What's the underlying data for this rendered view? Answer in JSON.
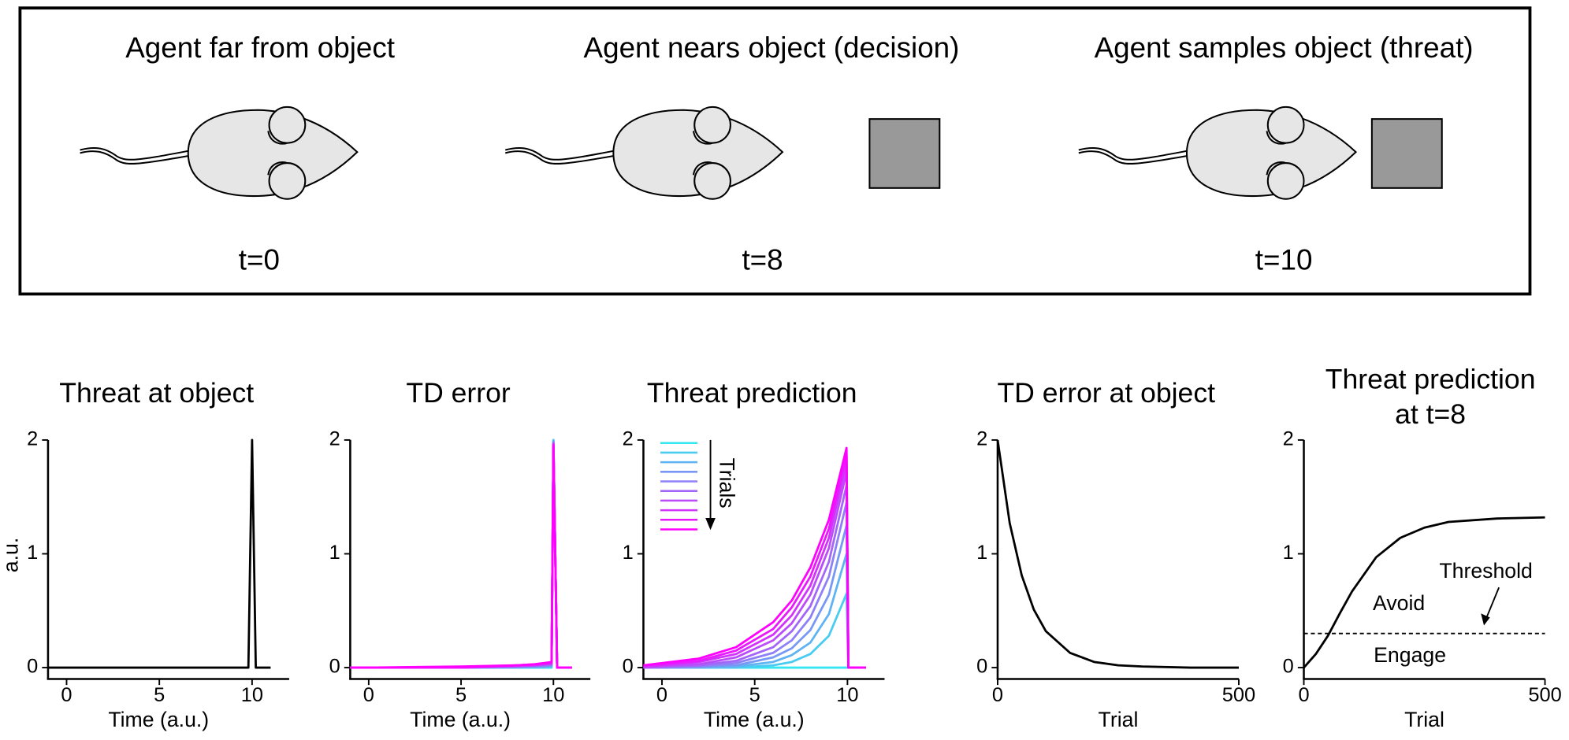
{
  "scenes": [
    {
      "title": "Agent far from object",
      "time": "t=0"
    },
    {
      "title": "Agent nears object (decision)",
      "time": "t=8"
    },
    {
      "title": "Agent samples object (threat)",
      "time": "t=10"
    }
  ],
  "chart_data": [
    {
      "type": "line",
      "title": "Threat at object",
      "xlabel": "Time (a.u.)",
      "ylabel": "a.u.",
      "x": [
        -1,
        9.8,
        10,
        10.2,
        11
      ],
      "values": [
        0,
        0,
        2,
        0,
        0
      ],
      "color": "#000000",
      "xlim": [
        -1,
        12
      ],
      "ylim": [
        -0.1,
        2
      ],
      "xticks": [
        0,
        5,
        10
      ],
      "yticks": [
        0,
        1,
        2
      ]
    },
    {
      "type": "line",
      "title": "TD error",
      "xlabel": "Time (a.u.)",
      "x": [
        -1,
        0,
        5,
        8,
        9,
        9.5,
        9.9,
        10,
        10.2,
        11
      ],
      "series": [
        {
          "color": "#33e6f0",
          "values": [
            0,
            0,
            0,
            0,
            0,
            0,
            0,
            2,
            0,
            0
          ]
        },
        {
          "color": "#4accf2",
          "values": [
            0,
            0,
            0,
            0,
            0,
            0,
            0.01,
            2,
            0,
            0
          ]
        },
        {
          "color": "#60b3f3",
          "values": [
            0,
            0,
            0,
            0,
            0.01,
            0.01,
            0.01,
            1.99,
            0,
            0
          ]
        },
        {
          "color": "#7799f5",
          "values": [
            0,
            0,
            0,
            0.01,
            0.01,
            0.01,
            0.02,
            1.99,
            0,
            0
          ]
        },
        {
          "color": "#8e80f7",
          "values": [
            0,
            0,
            0,
            0.01,
            0.01,
            0.02,
            0.02,
            1.98,
            0,
            0
          ]
        },
        {
          "color": "#a466f8",
          "values": [
            0,
            0,
            0,
            0.01,
            0.02,
            0.02,
            0.03,
            1.97,
            0,
            0
          ]
        },
        {
          "color": "#bb4cfa",
          "values": [
            0,
            0,
            0,
            0.01,
            0.02,
            0.03,
            0.03,
            1.97,
            0,
            0
          ]
        },
        {
          "color": "#d233fc",
          "values": [
            0,
            0,
            0,
            0.02,
            0.02,
            0.03,
            0.04,
            1.96,
            0,
            0
          ]
        },
        {
          "color": "#e819fd",
          "values": [
            0,
            0,
            0,
            0.02,
            0.03,
            0.04,
            0.04,
            1.96,
            0,
            0
          ]
        },
        {
          "color": "#ff00ff",
          "values": [
            0,
            0,
            0.01,
            0.02,
            0.03,
            0.04,
            0.05,
            1.95,
            0,
            0
          ]
        }
      ],
      "xlim": [
        -1,
        12
      ],
      "ylim": [
        -0.1,
        2
      ],
      "xticks": [
        0,
        5,
        10
      ],
      "yticks": [
        0,
        1,
        2
      ]
    },
    {
      "type": "line",
      "title": "Threat prediction",
      "xlabel": "Time (a.u.)",
      "legend_label": "Trials",
      "x": [
        -1,
        0,
        2,
        4,
        6,
        7,
        8,
        9,
        9.95,
        10.05,
        11
      ],
      "series": [
        {
          "color": "#33e6f0",
          "values": [
            0,
            0,
            0,
            0,
            0,
            0,
            0,
            0,
            0,
            0,
            0
          ]
        },
        {
          "color": "#4accf2",
          "values": [
            0,
            0,
            0,
            0,
            0.02,
            0.05,
            0.12,
            0.28,
            0.65,
            0,
            0
          ]
        },
        {
          "color": "#60b3f3",
          "values": [
            0,
            0,
            0,
            0.01,
            0.05,
            0.11,
            0.22,
            0.47,
            1.0,
            0,
            0
          ]
        },
        {
          "color": "#7799f5",
          "values": [
            0,
            0,
            0.01,
            0.02,
            0.09,
            0.17,
            0.33,
            0.64,
            1.25,
            0,
            0
          ]
        },
        {
          "color": "#8e80f7",
          "values": [
            0,
            0,
            0.01,
            0.04,
            0.13,
            0.24,
            0.44,
            0.8,
            1.45,
            0,
            0
          ]
        },
        {
          "color": "#a466f8",
          "values": [
            0,
            0.01,
            0.02,
            0.06,
            0.18,
            0.32,
            0.54,
            0.93,
            1.6,
            0,
            0
          ]
        },
        {
          "color": "#bb4cfa",
          "values": [
            0,
            0.01,
            0.03,
            0.09,
            0.24,
            0.39,
            0.64,
            1.05,
            1.72,
            0,
            0
          ]
        },
        {
          "color": "#d233fc",
          "values": [
            0.01,
            0.02,
            0.05,
            0.12,
            0.29,
            0.46,
            0.72,
            1.14,
            1.8,
            0,
            0
          ]
        },
        {
          "color": "#e819fd",
          "values": [
            0.02,
            0.03,
            0.06,
            0.15,
            0.34,
            0.53,
            0.8,
            1.22,
            1.87,
            0,
            0
          ]
        },
        {
          "color": "#ff00ff",
          "values": [
            0.02,
            0.04,
            0.08,
            0.18,
            0.4,
            0.59,
            0.88,
            1.3,
            1.93,
            0,
            0
          ]
        }
      ],
      "xlim": [
        -1,
        12
      ],
      "ylim": [
        -0.1,
        2
      ],
      "xticks": [
        0,
        5,
        10
      ],
      "yticks": [
        0,
        1,
        2
      ]
    },
    {
      "type": "line",
      "title": "TD error at object",
      "xlabel": "Trial",
      "x": [
        0,
        25,
        50,
        75,
        100,
        150,
        200,
        250,
        300,
        400,
        500
      ],
      "values": [
        2,
        1.27,
        0.81,
        0.51,
        0.32,
        0.13,
        0.05,
        0.02,
        0.01,
        0,
        0
      ],
      "color": "#000000",
      "xlim": [
        0,
        500
      ],
      "ylim": [
        -0.1,
        2
      ],
      "xticks": [
        0,
        500
      ],
      "yticks": [
        0,
        1,
        2
      ]
    },
    {
      "type": "line",
      "title": [
        "Threat prediction",
        "at t=8"
      ],
      "xlabel": "Trial",
      "x": [
        0,
        25,
        50,
        75,
        100,
        150,
        200,
        250,
        300,
        400,
        500
      ],
      "values": [
        0,
        0.12,
        0.28,
        0.48,
        0.67,
        0.97,
        1.14,
        1.23,
        1.28,
        1.31,
        1.32
      ],
      "color": "#000000",
      "threshold": {
        "value": 0.3,
        "label": "Threshold"
      },
      "regions": {
        "above": "Avoid",
        "below": "Engage"
      },
      "xlim": [
        0,
        500
      ],
      "ylim": [
        -0.1,
        2
      ],
      "xticks": [
        0,
        500
      ],
      "yticks": [
        0,
        1,
        2
      ]
    }
  ]
}
